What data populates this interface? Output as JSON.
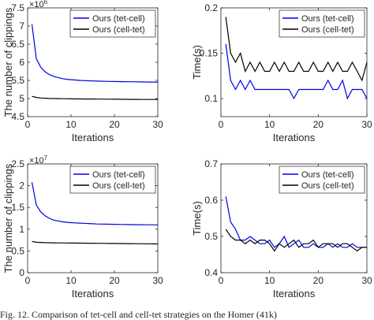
{
  "charts": [
    {
      "type": "line",
      "ylabel": "The number of clippings",
      "xlabel": "Iterations",
      "exponent_base": "×10",
      "exponent_power": "6",
      "xlim": [
        0,
        30
      ],
      "ylim": [
        4500000,
        7500000
      ],
      "xticks": [
        0,
        10,
        20,
        30
      ],
      "xtick_labels": [
        "0",
        "10",
        "20",
        "30"
      ],
      "yticks": [
        4500000,
        5000000,
        5500000,
        6000000,
        6500000,
        7000000,
        7500000
      ],
      "ytick_labels": [
        "4.5",
        "5",
        "5.5",
        "6",
        "6.5",
        "7",
        "7.5"
      ],
      "legend_position": "top-right",
      "series": [
        {
          "name": "Ours (tet-cell)",
          "color": "#0000e6",
          "x": [
            1,
            2,
            3,
            4,
            5,
            6,
            7,
            8,
            9,
            10,
            11,
            12,
            13,
            14,
            15,
            16,
            17,
            18,
            19,
            20,
            21,
            22,
            23,
            24,
            25,
            26,
            27,
            28,
            29,
            30
          ],
          "values": [
            7050000,
            6100000,
            5870000,
            5740000,
            5660000,
            5610000,
            5580000,
            5550000,
            5530000,
            5520000,
            5510000,
            5500000,
            5495000,
            5490000,
            5485000,
            5480000,
            5478000,
            5475000,
            5472000,
            5470000,
            5468000,
            5466000,
            5464000,
            5462000,
            5460000,
            5458000,
            5456000,
            5455000,
            5455000,
            5455000
          ]
        },
        {
          "name": "Ours (cell-tet)",
          "color": "#000000",
          "x": [
            1,
            2,
            3,
            4,
            5,
            6,
            7,
            8,
            9,
            10,
            11,
            12,
            13,
            14,
            15,
            16,
            17,
            18,
            19,
            20,
            21,
            22,
            23,
            24,
            25,
            26,
            27,
            28,
            29,
            30
          ],
          "values": [
            5060000,
            5030000,
            5015000,
            5008000,
            5003000,
            5000000,
            4997000,
            4995000,
            4993000,
            4991000,
            4990000,
            4989000,
            4988000,
            4987000,
            4986000,
            4985000,
            4984000,
            4983000,
            4982000,
            4981000,
            4980000,
            4979000,
            4978000,
            4977000,
            4976000,
            4975000,
            4975000,
            4974000,
            4974000,
            4973000
          ]
        }
      ]
    },
    {
      "type": "line",
      "ylabel": "Time(s)",
      "xlabel": "Iterations",
      "xlim": [
        0,
        30
      ],
      "ylim": [
        0.08,
        0.2
      ],
      "xticks": [
        0,
        10,
        20,
        30
      ],
      "xtick_labels": [
        "0",
        "10",
        "20",
        "30"
      ],
      "yticks": [
        0.1,
        0.15,
        0.2
      ],
      "ytick_labels": [
        "0.1",
        "0.15",
        "0.2"
      ],
      "legend_position": "top-right",
      "series": [
        {
          "name": "Ours (tet-cell)",
          "color": "#0000e6",
          "x": [
            1,
            2,
            3,
            4,
            5,
            6,
            7,
            8,
            9,
            10,
            11,
            12,
            13,
            14,
            15,
            16,
            17,
            18,
            19,
            20,
            21,
            22,
            23,
            24,
            25,
            26,
            27,
            28,
            29,
            30
          ],
          "values": [
            0.16,
            0.12,
            0.11,
            0.12,
            0.11,
            0.12,
            0.11,
            0.11,
            0.11,
            0.11,
            0.11,
            0.11,
            0.11,
            0.11,
            0.1,
            0.11,
            0.11,
            0.11,
            0.11,
            0.11,
            0.11,
            0.12,
            0.11,
            0.11,
            0.12,
            0.1,
            0.11,
            0.11,
            0.11,
            0.1
          ]
        },
        {
          "name": "Ours (cell-tet)",
          "color": "#000000",
          "x": [
            1,
            2,
            3,
            4,
            5,
            6,
            7,
            8,
            9,
            10,
            11,
            12,
            13,
            14,
            15,
            16,
            17,
            18,
            19,
            20,
            21,
            22,
            23,
            24,
            25,
            26,
            27,
            28,
            29,
            30
          ],
          "values": [
            0.19,
            0.15,
            0.14,
            0.15,
            0.13,
            0.14,
            0.13,
            0.14,
            0.13,
            0.13,
            0.14,
            0.13,
            0.14,
            0.13,
            0.13,
            0.14,
            0.13,
            0.13,
            0.14,
            0.13,
            0.13,
            0.14,
            0.13,
            0.14,
            0.13,
            0.13,
            0.14,
            0.13,
            0.12,
            0.14
          ]
        }
      ]
    },
    {
      "type": "line",
      "ylabel": "The number of clippings",
      "xlabel": "Iterations",
      "exponent_base": "×10",
      "exponent_power": "7",
      "xlim": [
        0,
        30
      ],
      "ylim": [
        0,
        25000000
      ],
      "xticks": [
        0,
        10,
        20,
        30
      ],
      "xtick_labels": [
        "0",
        "10",
        "20",
        "30"
      ],
      "yticks": [
        0,
        5000000,
        10000000,
        15000000,
        20000000,
        25000000
      ],
      "ytick_labels": [
        "0",
        "0.5",
        "1",
        "1.5",
        "2",
        "2.5"
      ],
      "legend_position": "top-right",
      "series": [
        {
          "name": "Ours (tet-cell)",
          "color": "#0000e6",
          "x": [
            1,
            2,
            3,
            4,
            5,
            6,
            7,
            8,
            9,
            10,
            11,
            12,
            13,
            14,
            15,
            16,
            17,
            18,
            19,
            20,
            21,
            22,
            23,
            24,
            25,
            26,
            27,
            28,
            29,
            30
          ],
          "values": [
            20800000,
            15600000,
            14000000,
            13100000,
            12500000,
            12100000,
            11900000,
            11700000,
            11600000,
            11500000,
            11450000,
            11400000,
            11350000,
            11300000,
            11250000,
            11200000,
            11180000,
            11160000,
            11140000,
            11120000,
            11100000,
            11080000,
            11060000,
            11050000,
            11040000,
            11030000,
            11020000,
            11010000,
            11000000,
            11000000
          ]
        },
        {
          "name": "Ours (cell-tet)",
          "color": "#000000",
          "x": [
            1,
            2,
            3,
            4,
            5,
            6,
            7,
            8,
            9,
            10,
            11,
            12,
            13,
            14,
            15,
            16,
            17,
            18,
            19,
            20,
            21,
            22,
            23,
            24,
            25,
            26,
            27,
            28,
            29,
            30
          ],
          "values": [
            7200000,
            7000000,
            6950000,
            6900000,
            6880000,
            6860000,
            6850000,
            6840000,
            6830000,
            6820000,
            6810000,
            6800000,
            6790000,
            6780000,
            6770000,
            6760000,
            6750000,
            6740000,
            6730000,
            6720000,
            6710000,
            6700000,
            6690000,
            6680000,
            6670000,
            6660000,
            6650000,
            6640000,
            6630000,
            6620000
          ]
        }
      ]
    },
    {
      "type": "line",
      "ylabel": "Time(s)",
      "xlabel": "Iterations",
      "xlim": [
        0,
        30
      ],
      "ylim": [
        0.4,
        0.7
      ],
      "xticks": [
        0,
        10,
        20,
        30
      ],
      "xtick_labels": [
        "0",
        "10",
        "20",
        "30"
      ],
      "yticks": [
        0.4,
        0.5,
        0.6,
        0.7
      ],
      "ytick_labels": [
        "0.4",
        "0.5",
        "0.6",
        "0.7"
      ],
      "legend_position": "top-right",
      "series": [
        {
          "name": "Ours (tet-cell)",
          "color": "#0000e6",
          "x": [
            1,
            2,
            3,
            4,
            5,
            6,
            7,
            8,
            9,
            10,
            11,
            12,
            13,
            14,
            15,
            16,
            17,
            18,
            19,
            20,
            21,
            22,
            23,
            24,
            25,
            26,
            27,
            28,
            29,
            30
          ],
          "values": [
            0.61,
            0.54,
            0.52,
            0.49,
            0.49,
            0.5,
            0.49,
            0.48,
            0.48,
            0.49,
            0.47,
            0.48,
            0.5,
            0.47,
            0.48,
            0.49,
            0.47,
            0.47,
            0.48,
            0.47,
            0.47,
            0.48,
            0.47,
            0.48,
            0.47,
            0.47,
            0.48,
            0.47,
            0.47,
            0.47
          ]
        },
        {
          "name": "Ours (cell-tet)",
          "color": "#000000",
          "x": [
            1,
            2,
            3,
            4,
            5,
            6,
            7,
            8,
            9,
            10,
            11,
            12,
            13,
            14,
            15,
            16,
            17,
            18,
            19,
            20,
            21,
            22,
            23,
            24,
            25,
            26,
            27,
            28,
            29,
            30
          ],
          "values": [
            0.52,
            0.5,
            0.49,
            0.49,
            0.48,
            0.49,
            0.48,
            0.49,
            0.49,
            0.48,
            0.46,
            0.48,
            0.47,
            0.48,
            0.49,
            0.47,
            0.48,
            0.48,
            0.49,
            0.47,
            0.48,
            0.48,
            0.48,
            0.47,
            0.48,
            0.48,
            0.47,
            0.46,
            0.47,
            0.47
          ]
        }
      ]
    }
  ],
  "caption": "Fig. 12. Comparison of tet-cell and cell-tet strategies on the Homer (41k)"
}
